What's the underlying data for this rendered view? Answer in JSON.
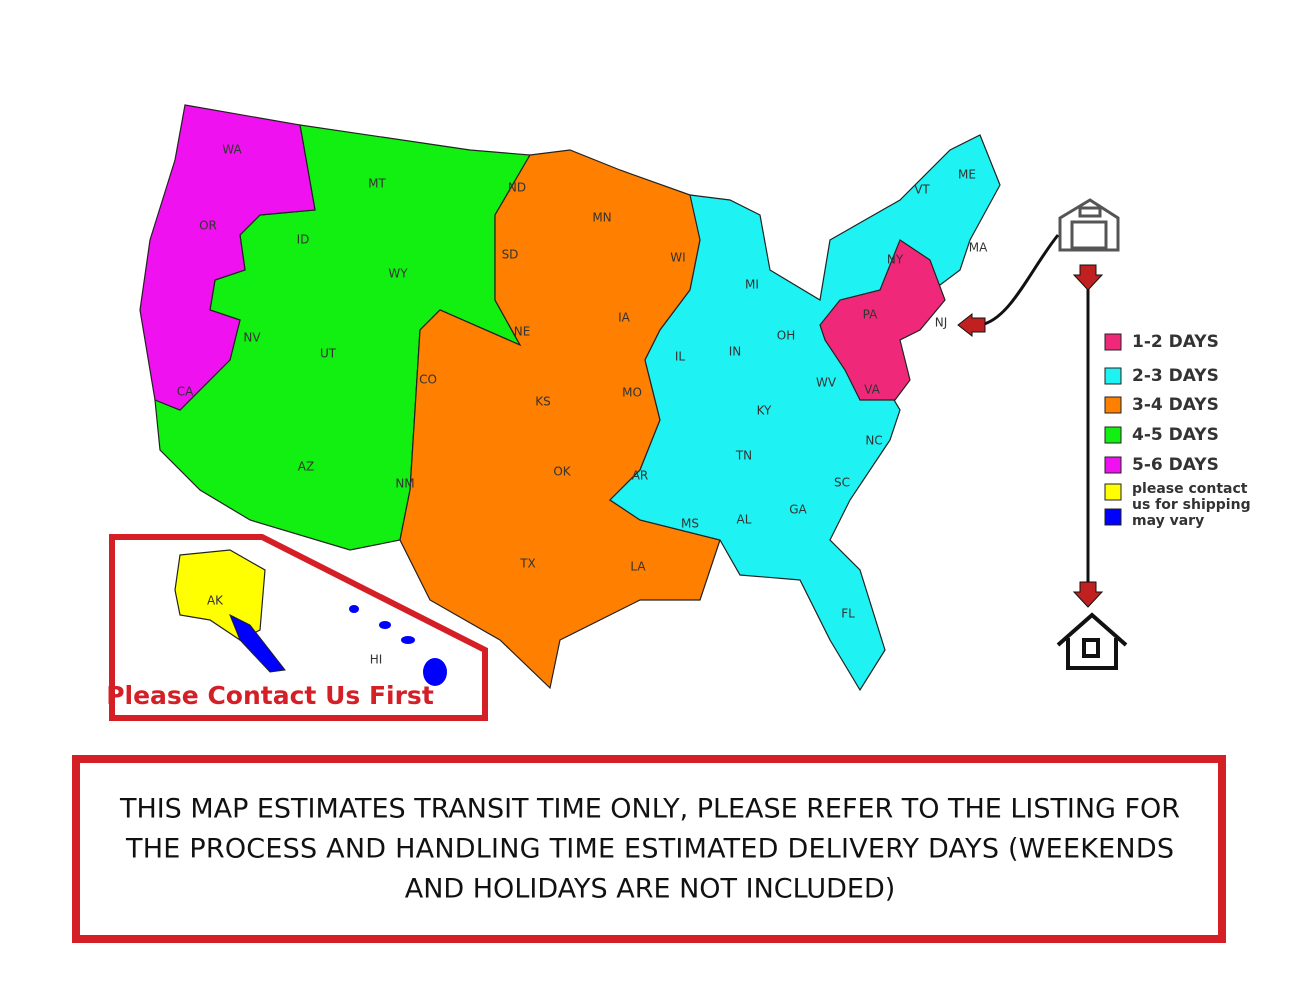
{
  "map": {
    "states": [
      "WA",
      "OR",
      "CA",
      "NV",
      "ID",
      "MT",
      "WY",
      "UT",
      "AZ",
      "NM",
      "CO",
      "ND",
      "SD",
      "NE",
      "KS",
      "OK",
      "TX",
      "MN",
      "IA",
      "MO",
      "AR",
      "LA",
      "WI",
      "IL",
      "MI",
      "IN",
      "OH",
      "KY",
      "TN",
      "MS",
      "AL",
      "GA",
      "FL",
      "SC",
      "NC",
      "VA",
      "WV",
      "PA",
      "NY",
      "VT",
      "ME",
      "MA",
      "NJ",
      "AK",
      "HI"
    ],
    "inset_label": "Please Contact Us First"
  },
  "legend": {
    "items": [
      {
        "label": "1-2 DAYS",
        "color": "#f0287a"
      },
      {
        "label": "2-3 DAYS",
        "color": "#1ef2f2"
      },
      {
        "label": "3-4 DAYS",
        "color": "#ff7f00"
      },
      {
        "label": "4-5 DAYS",
        "color": "#11f011"
      },
      {
        "label": "5-6 DAYS",
        "color": "#f011f0"
      }
    ],
    "note": {
      "colors": [
        "#ffff00",
        "#0000ff"
      ],
      "lines": [
        "please contact",
        "us for shipping",
        "may vary"
      ]
    }
  },
  "notice": {
    "lines": [
      "THIS MAP ESTIMATES TRANSIT TIME ONLY, PLEASE REFER TO THE LISTING FOR",
      "THE PROCESS AND HANDLING TIME ESTIMATED DELIVERY DAYS (WEEKENDS",
      "AND HOLIDAYS ARE NOT INCLUDED)"
    ]
  }
}
